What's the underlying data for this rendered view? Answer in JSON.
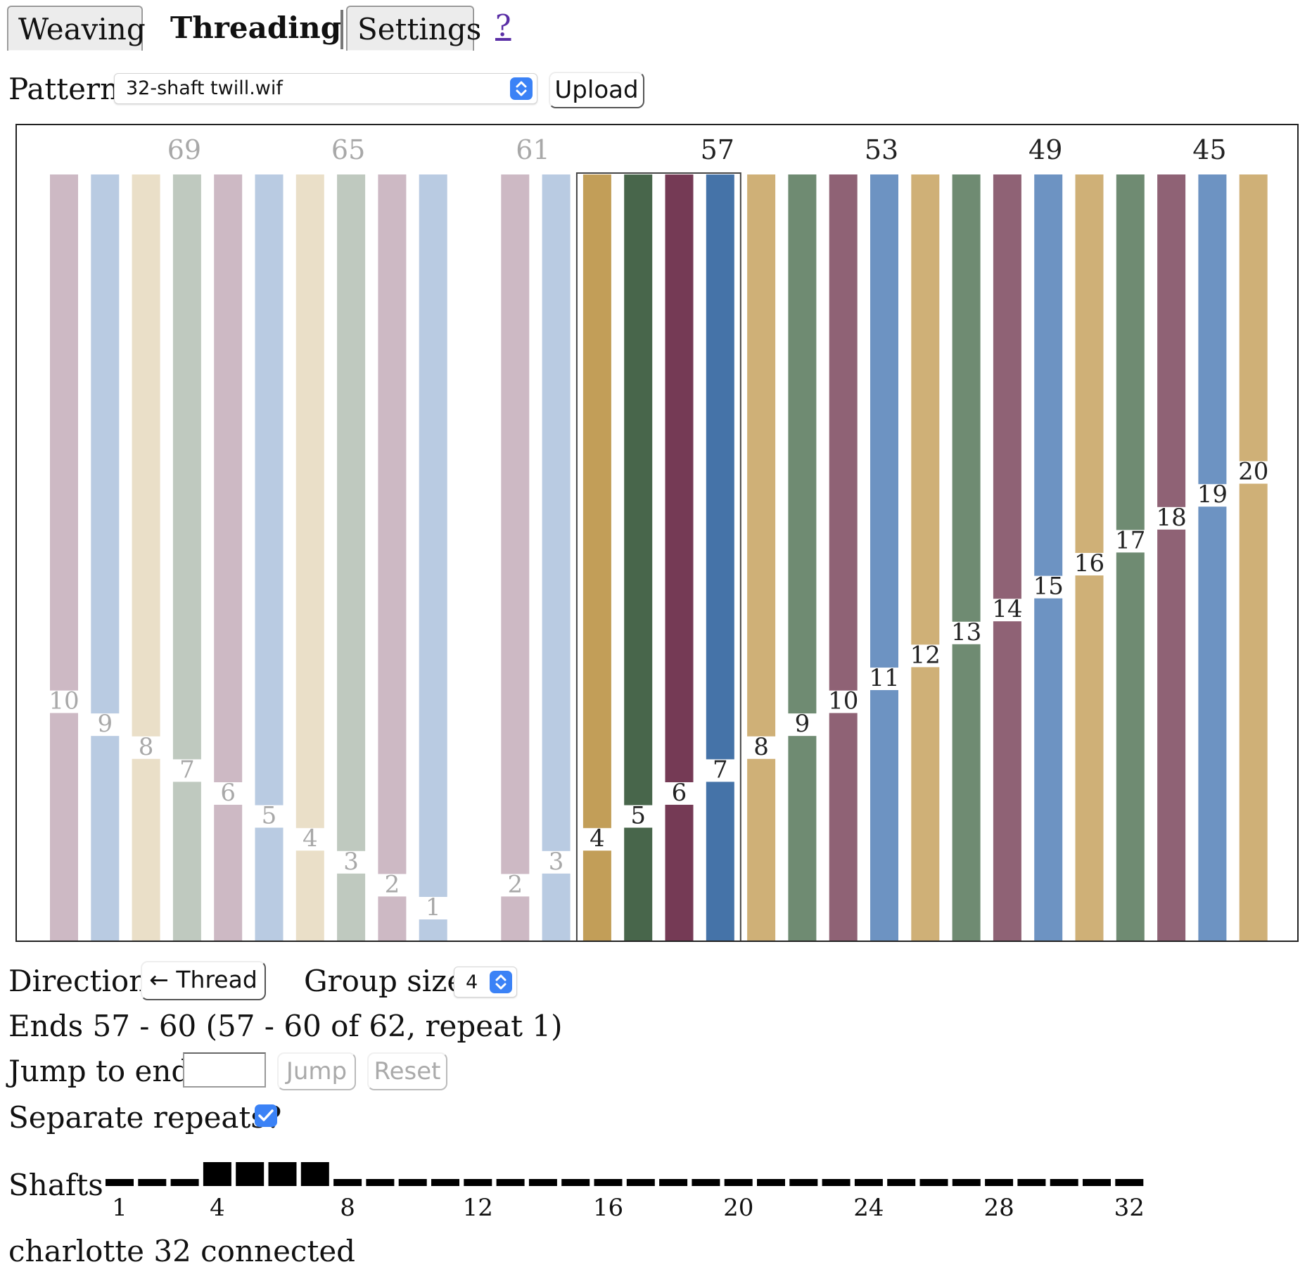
{
  "tabs": [
    {
      "label": "Weaving",
      "active": false
    },
    {
      "label": "Threading",
      "active": true
    },
    {
      "label": "Settings",
      "active": false
    }
  ],
  "help_link": "?",
  "pattern": {
    "label": "Pattern",
    "selected": "32-shaft twill.wif",
    "upload_label": "Upload"
  },
  "threads_top_numbers": [
    {
      "text": "69",
      "current": false
    },
    {
      "text": "65",
      "current": false
    },
    {
      "text": "61",
      "current": false
    },
    {
      "text": "57",
      "current": true
    },
    {
      "text": "53",
      "current": false
    },
    {
      "text": "49",
      "current": false
    },
    {
      "text": "45",
      "current": false
    }
  ],
  "threads": [
    {
      "shaft": "10",
      "color": "#cdb9c4",
      "faded": true
    },
    {
      "shaft": "9",
      "color": "#b9cbe2",
      "faded": true
    },
    {
      "shaft": "8",
      "color": "#eadfc8",
      "faded": true
    },
    {
      "shaft": "7",
      "color": "#bfc9bf",
      "faded": true
    },
    {
      "shaft": "6",
      "color": "#cdb9c4",
      "faded": true
    },
    {
      "shaft": "5",
      "color": "#b9cbe2",
      "faded": true
    },
    {
      "shaft": "4",
      "color": "#eadfc8",
      "faded": true
    },
    {
      "shaft": "3",
      "color": "#bfc9bf",
      "faded": true
    },
    {
      "shaft": "2",
      "color": "#cdb9c4",
      "faded": true
    },
    {
      "shaft": "1",
      "color": "#b9cbe2",
      "faded": true
    },
    {
      "shaft": "",
      "color": "",
      "faded": true
    },
    {
      "shaft": "2",
      "color": "#cdb9c4",
      "faded": true
    },
    {
      "shaft": "3",
      "color": "#b9cbe2",
      "faded": true
    },
    {
      "shaft": "4",
      "color": "#c29e58",
      "faded": false,
      "current": true
    },
    {
      "shaft": "5",
      "color": "#48664b",
      "faded": false,
      "current": true
    },
    {
      "shaft": "6",
      "color": "#753a55",
      "faded": false,
      "current": true
    },
    {
      "shaft": "7",
      "color": "#4573a8",
      "faded": false,
      "current": true
    },
    {
      "shaft": "8",
      "color": "#cfb077",
      "faded": false
    },
    {
      "shaft": "9",
      "color": "#6f8b72",
      "faded": false
    },
    {
      "shaft": "10",
      "color": "#8f6275",
      "faded": false
    },
    {
      "shaft": "11",
      "color": "#6d93c2",
      "faded": false
    },
    {
      "shaft": "12",
      "color": "#cfb077",
      "faded": false
    },
    {
      "shaft": "13",
      "color": "#6f8b72",
      "faded": false
    },
    {
      "shaft": "14",
      "color": "#8f6275",
      "faded": false
    },
    {
      "shaft": "15",
      "color": "#6d93c2",
      "faded": false
    },
    {
      "shaft": "16",
      "color": "#cfb077",
      "faded": false
    },
    {
      "shaft": "17",
      "color": "#6f8b72",
      "faded": false
    },
    {
      "shaft": "18",
      "color": "#8f6275",
      "faded": false
    },
    {
      "shaft": "19",
      "color": "#6d93c2",
      "faded": false
    },
    {
      "shaft": "20",
      "color": "#cfb077",
      "faded": false
    }
  ],
  "direction": {
    "label": "Direction",
    "button": "← Thread"
  },
  "group_size": {
    "label": "Group size",
    "value": "4"
  },
  "ends_status": "Ends 57 - 60 (57 - 60 of 62, repeat 1)",
  "jump": {
    "label": "Jump to end",
    "value": "",
    "jump_button": "Jump",
    "reset_button": "Reset"
  },
  "separate_repeats": {
    "label": "Separate repeats?",
    "checked": true
  },
  "shafts": {
    "label": "Shafts",
    "count": 32,
    "raised": [
      4,
      5,
      6,
      7
    ],
    "tick_labels": [
      "1",
      "4",
      "8",
      "12",
      "16",
      "20",
      "24",
      "28",
      "32"
    ]
  },
  "connection_status": "charlotte 32 connected",
  "colors": {
    "accent": "#3b82f6",
    "link": "#5a2ea6"
  }
}
